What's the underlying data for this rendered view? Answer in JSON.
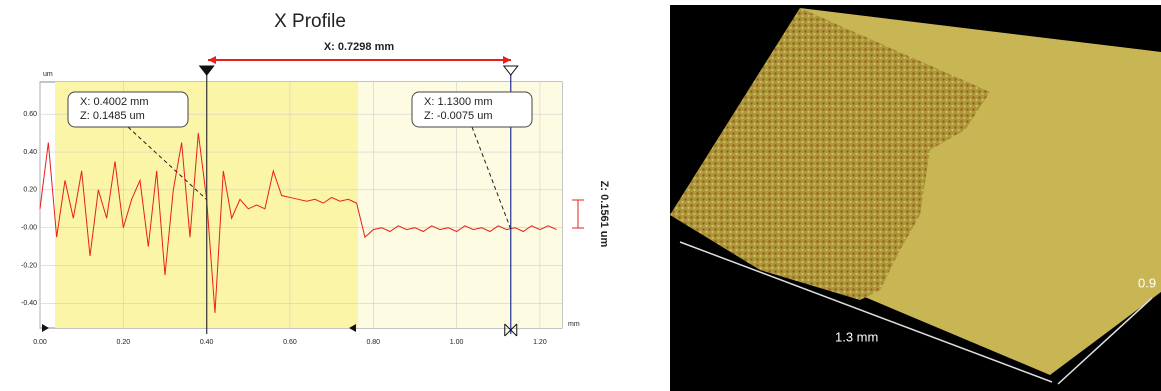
{
  "chart_data": {
    "type": "line",
    "title": "X Profile",
    "y_unit": "um",
    "x_unit": "mm",
    "x": [
      0,
      0.02,
      0.04,
      0.06,
      0.08,
      0.1,
      0.12,
      0.14,
      0.16,
      0.18,
      0.2,
      0.22,
      0.24,
      0.26,
      0.28,
      0.3,
      0.32,
      0.34,
      0.36,
      0.38,
      0.4,
      0.42,
      0.44,
      0.46,
      0.48,
      0.5,
      0.52,
      0.54,
      0.56,
      0.58,
      0.6,
      0.62,
      0.64,
      0.66,
      0.68,
      0.7,
      0.72,
      0.74,
      0.76,
      0.78,
      0.8,
      0.82,
      0.84,
      0.86,
      0.88,
      0.9,
      0.92,
      0.94,
      0.96,
      0.98,
      1,
      1.02,
      1.04,
      1.06,
      1.08,
      1.1,
      1.12,
      1.14,
      1.16,
      1.18,
      1.2,
      1.22,
      1.24
    ],
    "values": [
      0.1,
      0.45,
      -0.05,
      0.25,
      0.05,
      0.3,
      -0.15,
      0.2,
      0.05,
      0.35,
      0,
      0.15,
      0.25,
      -0.1,
      0.3,
      -0.25,
      0.2,
      0.45,
      -0.05,
      0.5,
      0.15,
      -0.45,
      0.3,
      0.05,
      0.15,
      0.1,
      0.12,
      0.1,
      0.3,
      0.17,
      0.16,
      0.15,
      0.14,
      0.15,
      0.13,
      0.16,
      0.14,
      0.15,
      0.13,
      -0.05,
      -0.01,
      0,
      -0.02,
      0.01,
      -0.01,
      0,
      -0.02,
      0.01,
      -0.01,
      0,
      -0.02,
      0.01,
      -0.01,
      0,
      -0.02,
      0.01,
      -0.01,
      0,
      -0.02,
      0.01,
      -0.01,
      0.01,
      -0.01
    ],
    "color": "#e8201c",
    "xlim": [
      0,
      1.253
    ],
    "ylim": [
      -0.53,
      0.77
    ],
    "xticks": [
      {
        "value": 0,
        "label": "0.00"
      },
      {
        "value": 0.2,
        "label": "0.20"
      },
      {
        "value": 0.4,
        "label": "0.40"
      },
      {
        "value": 0.6,
        "label": "0.60"
      },
      {
        "value": 0.8,
        "label": "0.80"
      },
      {
        "value": 1,
        "label": "1.00"
      },
      {
        "value": 1.2,
        "label": "1.20"
      }
    ],
    "yticks": [
      {
        "value": -0.4,
        "label": "-0.40"
      },
      {
        "value": -0.2,
        "label": "-0.20"
      },
      {
        "value": 0,
        "label": "-0.00"
      },
      {
        "value": 0.2,
        "label": "0.20"
      },
      {
        "value": 0.4,
        "label": "0.40"
      },
      {
        "value": 0.6,
        "label": "0.60"
      }
    ],
    "grid": true,
    "cursors": [
      0.4002,
      1.13
    ],
    "cursor_colors": [
      "#333333",
      "#1f2f9a"
    ],
    "cursor_labels": [
      [
        "X: 0.4002 mm",
        "Z: 0.1485 um"
      ],
      [
        "X: 1.1300 mm",
        "Z: -0.0075 um"
      ]
    ],
    "x_distance_label": "X: 0.7298 mm",
    "z_distance_label": "Z: 0.1561 um"
  },
  "surface_view": {
    "width_label": "1.3 mm",
    "depth_label": "0.9"
  }
}
